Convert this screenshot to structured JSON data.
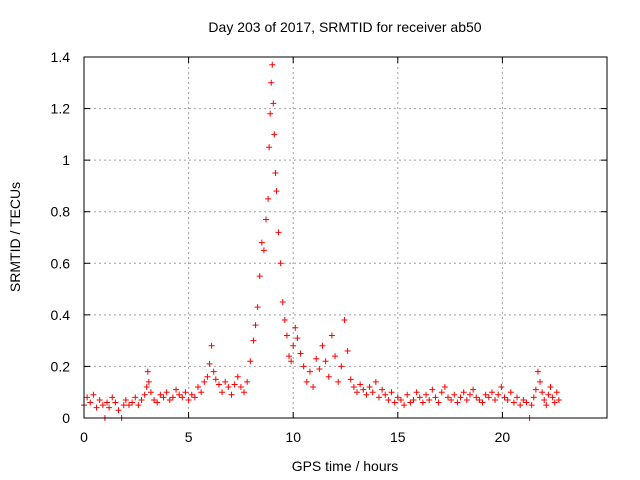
{
  "chart_data": {
    "type": "scatter",
    "title": "Day 203 of 2017, SRMTID for receiver ab50",
    "xlabel": "GPS time / hours",
    "ylabel": "SRMTID / TECUs",
    "xlim": [
      0,
      25
    ],
    "ylim": [
      0,
      1.4
    ],
    "xticks": [
      0,
      5,
      10,
      15,
      20
    ],
    "yticks": [
      0,
      0.2,
      0.4,
      0.6,
      0.8,
      1,
      1.2,
      1.4
    ],
    "ytick_labels": [
      "0",
      "0.2",
      "0.4",
      "0.6",
      "0.8",
      "1",
      "1.2",
      "1.4"
    ],
    "grid": true,
    "marker": "+",
    "color": "#ff0000",
    "series": [
      {
        "name": "SRMTID",
        "x": [
          0.0,
          0.15,
          0.3,
          0.45,
          0.6,
          0.75,
          0.9,
          1.0,
          1.1,
          1.2,
          1.35,
          1.5,
          1.65,
          1.8,
          1.9,
          2.0,
          2.15,
          2.3,
          2.45,
          2.6,
          2.75,
          2.9,
          3.0,
          3.05,
          3.1,
          3.2,
          3.35,
          3.5,
          3.65,
          3.8,
          3.95,
          4.1,
          4.25,
          4.4,
          4.55,
          4.7,
          4.85,
          5.0,
          5.15,
          5.3,
          5.45,
          5.6,
          5.75,
          5.9,
          6.0,
          6.1,
          6.2,
          6.3,
          6.45,
          6.6,
          6.75,
          6.9,
          7.05,
          7.2,
          7.35,
          7.5,
          7.65,
          7.8,
          7.95,
          8.1,
          8.2,
          8.3,
          8.4,
          8.5,
          8.6,
          8.7,
          8.8,
          8.85,
          8.9,
          8.95,
          9.0,
          9.05,
          9.1,
          9.15,
          9.2,
          9.3,
          9.4,
          9.5,
          9.6,
          9.7,
          9.8,
          9.9,
          10.0,
          10.1,
          10.2,
          10.35,
          10.5,
          10.65,
          10.8,
          10.95,
          11.1,
          11.25,
          11.4,
          11.55,
          11.7,
          11.85,
          12.0,
          12.15,
          12.3,
          12.45,
          12.6,
          12.75,
          12.9,
          13.05,
          13.2,
          13.35,
          13.5,
          13.65,
          13.8,
          13.95,
          14.1,
          14.25,
          14.4,
          14.55,
          14.7,
          14.85,
          15.0,
          15.15,
          15.3,
          15.45,
          15.6,
          15.75,
          15.9,
          16.05,
          16.2,
          16.35,
          16.5,
          16.65,
          16.8,
          16.95,
          17.1,
          17.25,
          17.4,
          17.55,
          17.7,
          17.85,
          18.0,
          18.15,
          18.3,
          18.45,
          18.6,
          18.75,
          18.9,
          19.05,
          19.2,
          19.35,
          19.5,
          19.65,
          19.8,
          19.95,
          20.1,
          20.25,
          20.4,
          20.55,
          20.7,
          20.85,
          21.0,
          21.15,
          21.3,
          21.4,
          21.5,
          21.6,
          21.7,
          21.8,
          21.9,
          22.0,
          22.1,
          22.2,
          22.3,
          22.4,
          22.5,
          22.6,
          22.7
        ],
        "y": [
          0.05,
          0.08,
          0.06,
          0.09,
          0.04,
          0.07,
          0.05,
          0.0,
          0.06,
          0.04,
          0.08,
          0.06,
          0.03,
          0.0,
          0.05,
          0.07,
          0.05,
          0.06,
          0.08,
          0.05,
          0.07,
          0.09,
          0.12,
          0.18,
          0.14,
          0.1,
          0.07,
          0.06,
          0.09,
          0.08,
          0.1,
          0.07,
          0.08,
          0.11,
          0.09,
          0.08,
          0.1,
          0.07,
          0.09,
          0.08,
          0.12,
          0.1,
          0.14,
          0.16,
          0.21,
          0.28,
          0.18,
          0.15,
          0.13,
          0.1,
          0.14,
          0.12,
          0.09,
          0.13,
          0.16,
          0.12,
          0.1,
          0.14,
          0.22,
          0.3,
          0.36,
          0.43,
          0.55,
          0.68,
          0.65,
          0.77,
          0.85,
          1.05,
          1.18,
          1.3,
          1.37,
          1.22,
          1.1,
          0.95,
          0.88,
          0.72,
          0.6,
          0.45,
          0.38,
          0.32,
          0.24,
          0.22,
          0.28,
          0.35,
          0.31,
          0.25,
          0.2,
          0.14,
          0.18,
          0.12,
          0.23,
          0.19,
          0.28,
          0.22,
          0.16,
          0.32,
          0.24,
          0.14,
          0.2,
          0.38,
          0.26,
          0.15,
          0.12,
          0.1,
          0.13,
          0.11,
          0.09,
          0.12,
          0.1,
          0.14,
          0.08,
          0.11,
          0.09,
          0.07,
          0.1,
          0.06,
          0.08,
          0.07,
          0.05,
          0.09,
          0.06,
          0.07,
          0.1,
          0.08,
          0.06,
          0.09,
          0.07,
          0.11,
          0.08,
          0.06,
          0.1,
          0.12,
          0.08,
          0.07,
          0.09,
          0.06,
          0.08,
          0.1,
          0.07,
          0.09,
          0.11,
          0.08,
          0.07,
          0.06,
          0.09,
          0.08,
          0.1,
          0.07,
          0.09,
          0.12,
          0.08,
          0.07,
          0.1,
          0.06,
          0.08,
          0.05,
          0.07,
          0.06,
          0.0,
          0.05,
          0.08,
          0.11,
          0.18,
          0.14,
          0.1,
          0.07,
          0.05,
          0.09,
          0.12,
          0.08,
          0.06,
          0.1,
          0.07
        ]
      }
    ]
  }
}
